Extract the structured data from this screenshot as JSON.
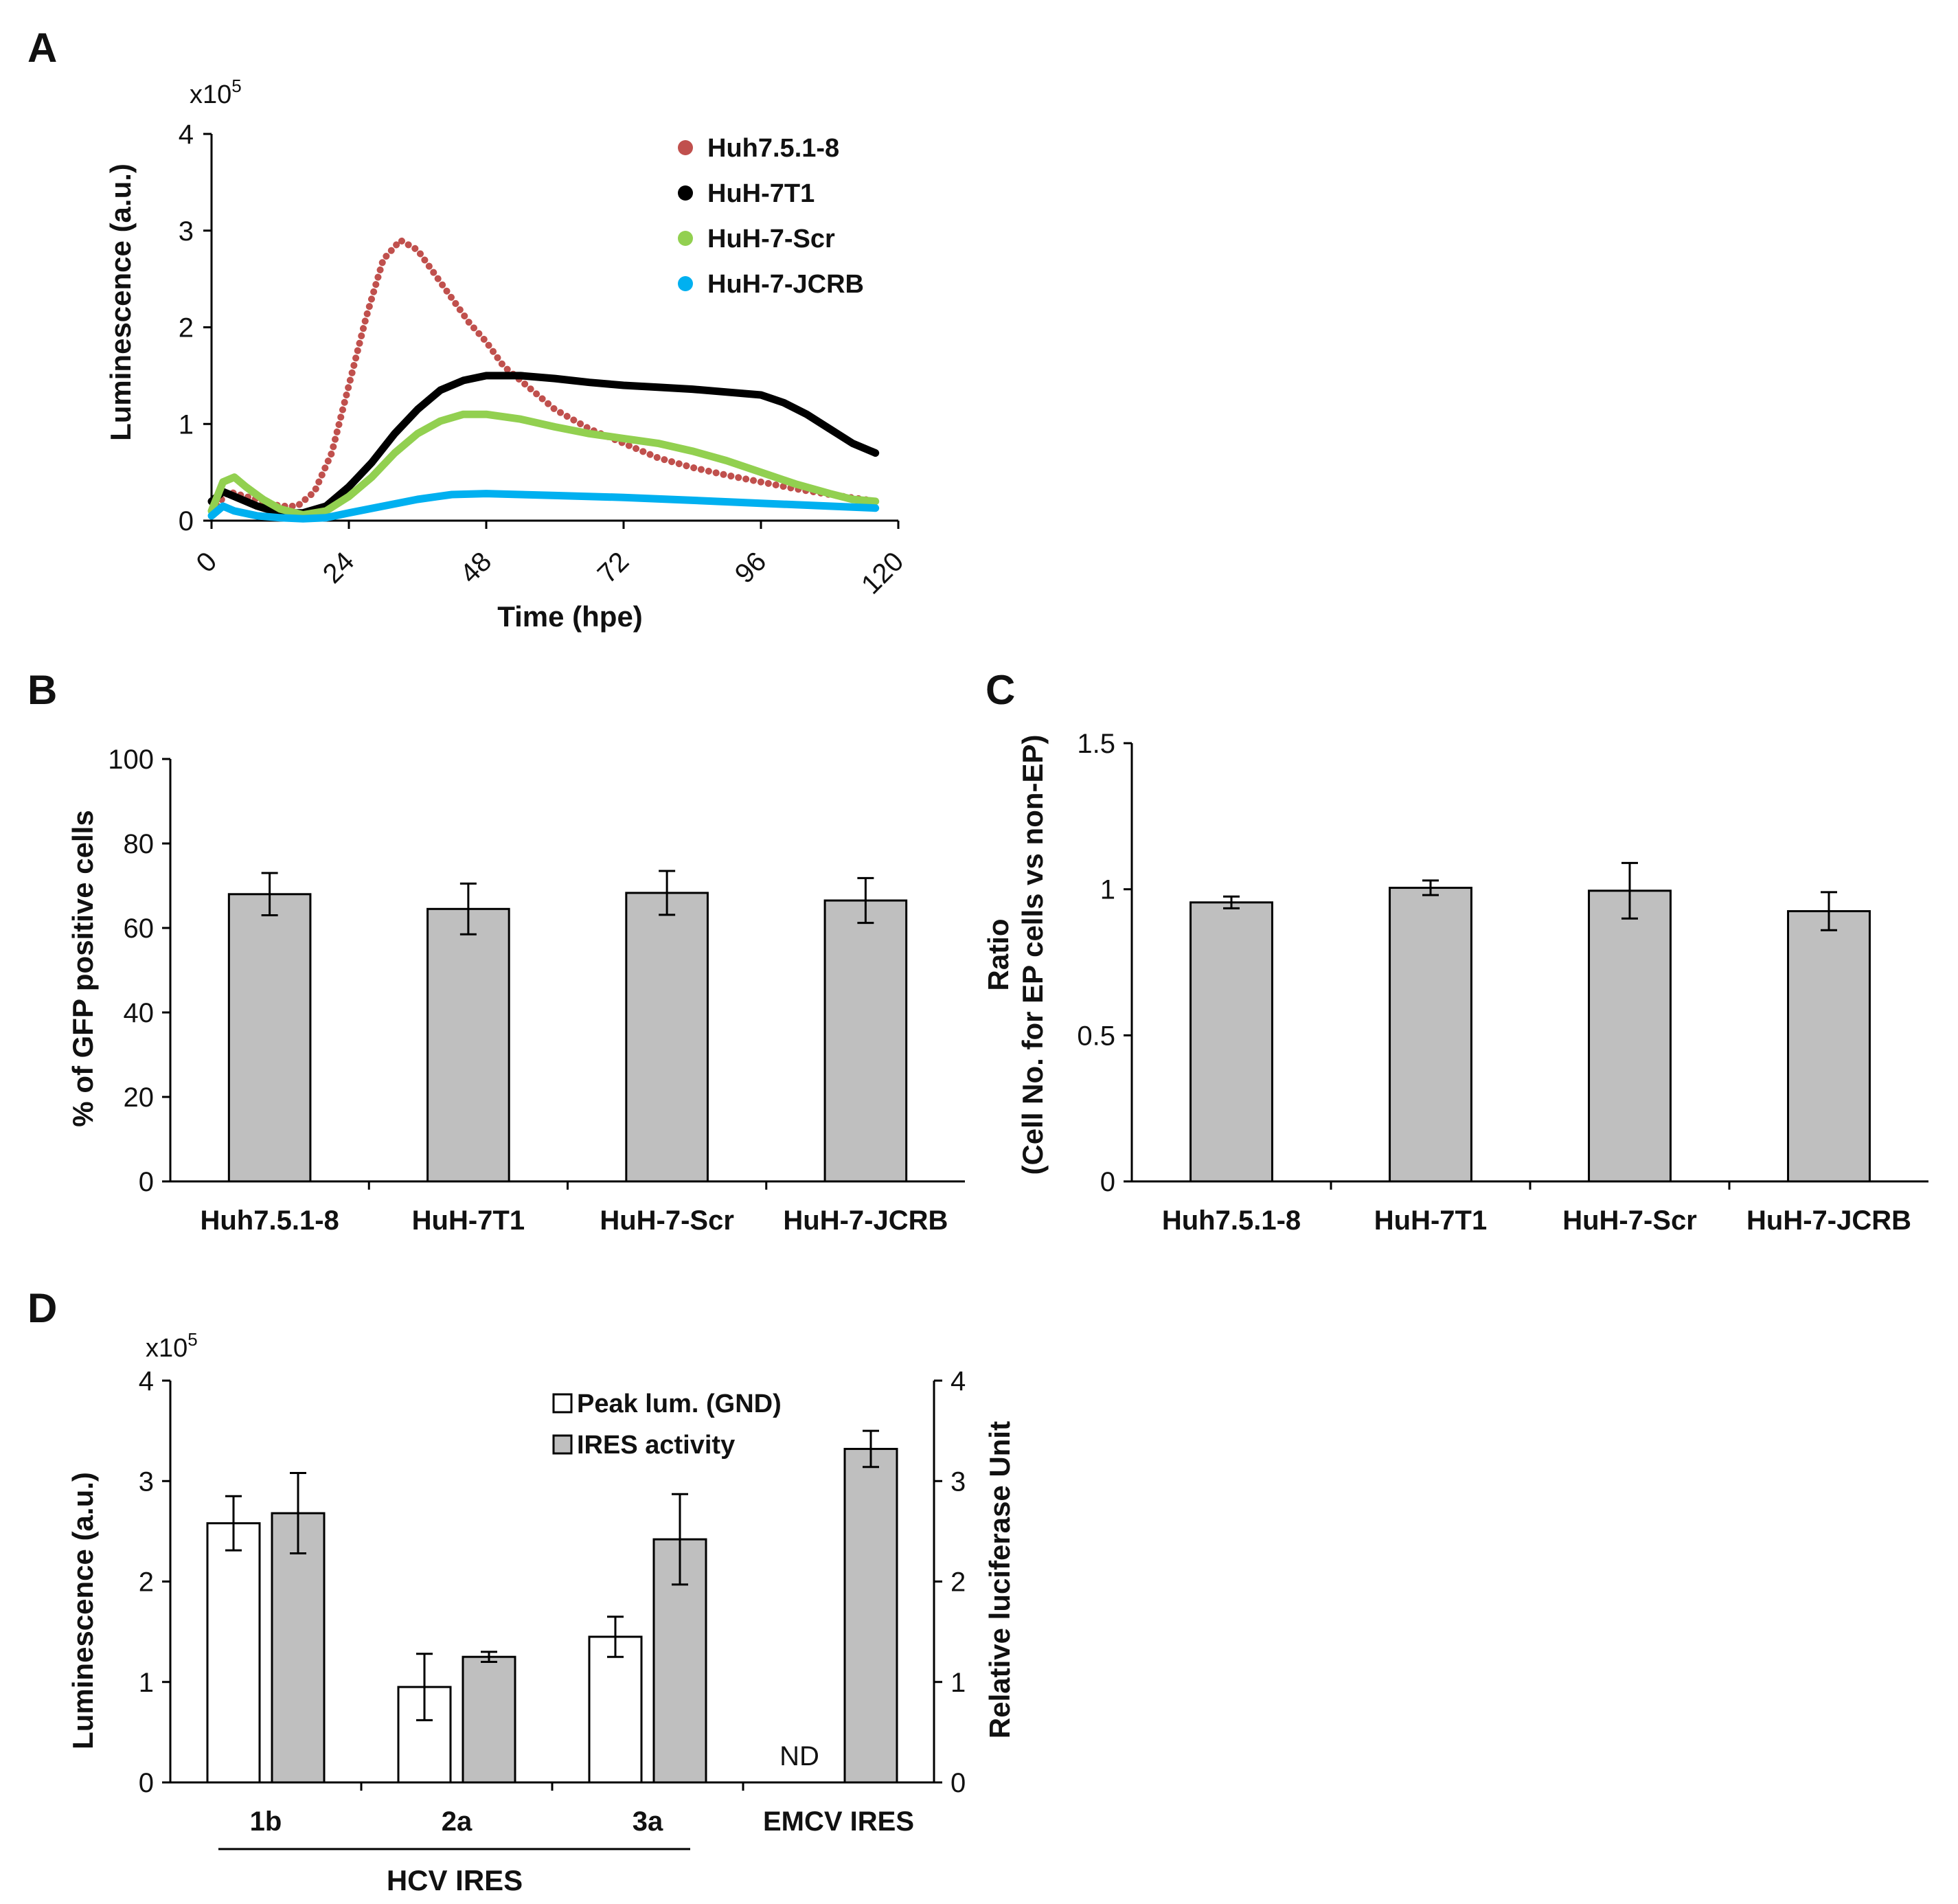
{
  "panel_labels": [
    "A",
    "B",
    "C",
    "D"
  ],
  "chart_data": [
    {
      "panel": "A",
      "type": "line",
      "xlabel": "Time (hpe)",
      "ylabel": "Luminescence (a.u.)",
      "y_multiplier": "x10",
      "y_multiplier_exp": "5",
      "xlim": [
        0,
        120
      ],
      "ylim": [
        0,
        4
      ],
      "xticks": [
        "0",
        "24",
        "48",
        "72",
        "96",
        "120"
      ],
      "yticks": [
        "0",
        "1",
        "2",
        "3",
        "4"
      ],
      "legend_position": "top-right",
      "series": [
        {
          "name": "Huh7.5.1-8",
          "color": "#c0504d",
          "x": [
            0,
            3,
            6,
            9,
            12,
            15,
            18,
            21,
            24,
            27,
            30,
            33,
            36,
            39,
            42,
            45,
            48,
            51,
            54,
            57,
            60,
            66,
            72,
            78,
            84,
            90,
            96,
            102,
            108,
            114,
            116
          ],
          "y": [
            0.1,
            0.3,
            0.25,
            0.2,
            0.15,
            0.15,
            0.3,
            0.7,
            1.4,
            2.1,
            2.7,
            2.9,
            2.8,
            2.55,
            2.3,
            2.05,
            1.85,
            1.6,
            1.45,
            1.3,
            1.15,
            0.95,
            0.8,
            0.65,
            0.55,
            0.47,
            0.4,
            0.33,
            0.27,
            0.22,
            0.2
          ]
        },
        {
          "name": "HuH-7T1",
          "color": "#000000",
          "x": [
            0,
            2,
            4,
            8,
            12,
            16,
            20,
            24,
            28,
            32,
            36,
            40,
            44,
            48,
            54,
            60,
            66,
            72,
            78,
            84,
            90,
            96,
            100,
            104,
            108,
            112,
            116
          ],
          "y": [
            0.2,
            0.3,
            0.25,
            0.15,
            0.08,
            0.08,
            0.15,
            0.35,
            0.6,
            0.9,
            1.15,
            1.35,
            1.45,
            1.5,
            1.5,
            1.47,
            1.43,
            1.4,
            1.38,
            1.36,
            1.33,
            1.3,
            1.22,
            1.1,
            0.95,
            0.8,
            0.7
          ]
        },
        {
          "name": "HuH-7-Scr",
          "color": "#92d050",
          "x": [
            0,
            2,
            4,
            6,
            9,
            12,
            16,
            20,
            24,
            28,
            32,
            36,
            40,
            44,
            48,
            54,
            60,
            66,
            72,
            78,
            84,
            90,
            96,
            102,
            108,
            112,
            116
          ],
          "y": [
            0.1,
            0.4,
            0.45,
            0.35,
            0.22,
            0.12,
            0.06,
            0.1,
            0.25,
            0.45,
            0.7,
            0.9,
            1.03,
            1.1,
            1.1,
            1.05,
            0.97,
            0.9,
            0.85,
            0.8,
            0.72,
            0.62,
            0.5,
            0.38,
            0.28,
            0.22,
            0.2
          ]
        },
        {
          "name": "HuH-7-JCRB",
          "color": "#00b0f0",
          "x": [
            0,
            2,
            4,
            8,
            12,
            16,
            20,
            24,
            30,
            36,
            42,
            48,
            54,
            60,
            72,
            84,
            96,
            108,
            116
          ],
          "y": [
            0.05,
            0.15,
            0.1,
            0.05,
            0.03,
            0.02,
            0.03,
            0.08,
            0.15,
            0.22,
            0.27,
            0.28,
            0.27,
            0.26,
            0.24,
            0.21,
            0.18,
            0.15,
            0.13
          ]
        }
      ]
    },
    {
      "panel": "B",
      "type": "bar",
      "ylabel": "% of GFP positive cells",
      "categories": [
        "Huh7.5.1-8",
        "HuH-7T1",
        "HuH-7-Scr",
        "HuH-7-JCRB"
      ],
      "values": [
        68,
        64.5,
        68.3,
        66.5
      ],
      "errors": [
        5,
        6,
        5.2,
        5.3
      ],
      "ylim": [
        0,
        100
      ],
      "yticks": [
        "0",
        "20",
        "40",
        "60",
        "80",
        "100"
      ],
      "bar_color": "#bfbfbf"
    },
    {
      "panel": "C",
      "type": "bar",
      "ylabel_line1": "Ratio",
      "ylabel_line2": "(Cell No. for EP cells vs non-EP)",
      "categories": [
        "Huh7.5.1-8",
        "HuH-7T1",
        "HuH-7-Scr",
        "HuH-7-JCRB"
      ],
      "values": [
        0.955,
        1.005,
        0.995,
        0.925
      ],
      "errors": [
        0.02,
        0.025,
        0.095,
        0.065
      ],
      "ylim": [
        0,
        1.5
      ],
      "yticks": [
        "0",
        "0.5",
        "1",
        "1.5"
      ],
      "bar_color": "#bfbfbf"
    },
    {
      "panel": "D",
      "type": "bar",
      "ylabel_left": "Luminescence (a.u.)",
      "ylabel_right": "Relative luciferase Unit",
      "y_multiplier": "x10",
      "y_multiplier_exp": "5",
      "categories": [
        "1b",
        "2a",
        "3a",
        "EMCV IRES"
      ],
      "group_label": "HCV IRES",
      "ylim": [
        0,
        4
      ],
      "yticks": [
        "0",
        "1",
        "2",
        "3",
        "4"
      ],
      "legend_position": "top-center",
      "nd_label": "ND",
      "series": [
        {
          "name": "Peak lum. (GND)",
          "color": "#ffffff",
          "values": [
            2.58,
            0.95,
            1.45,
            null
          ],
          "errors": [
            0.27,
            0.33,
            0.2,
            null
          ]
        },
        {
          "name": "IRES activity",
          "color": "#bfbfbf",
          "values": [
            2.68,
            1.25,
            2.42,
            3.32
          ],
          "errors": [
            0.4,
            0.05,
            0.45,
            0.18
          ]
        }
      ]
    }
  ]
}
